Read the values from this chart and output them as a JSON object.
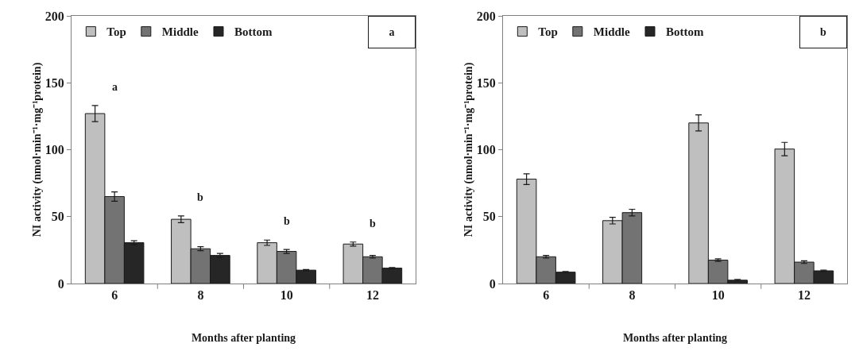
{
  "chart_data": [
    {
      "type": "bar",
      "categories": [
        "6",
        "8",
        "10",
        "12"
      ],
      "xlabel": "Months after planting",
      "ylabel": "NI activity (nmol·min⁻¹·mg⁻¹protein)",
      "ylim": [
        0,
        200
      ],
      "yticks": [
        0,
        50,
        100,
        150,
        200
      ],
      "grid": false,
      "legend": "top left",
      "series": [
        {
          "name": "Top",
          "color": "#bfbfbf",
          "values": [
            127,
            48,
            30.5,
            29.5
          ],
          "errors": [
            6,
            2.5,
            2,
            1.5
          ]
        },
        {
          "name": "Middle",
          "color": "#737373",
          "values": [
            65,
            26,
            24,
            20
          ],
          "errors": [
            3.5,
            1.5,
            1.5,
            1
          ]
        },
        {
          "name": "Bottom",
          "color": "#262626",
          "values": [
            30.5,
            21,
            10,
            11.5
          ],
          "errors": [
            1.5,
            1.5,
            0.5,
            0.5
          ]
        }
      ],
      "annotations": [
        "a",
        "a",
        "b",
        "b",
        "b"
      ]
    },
    {
      "type": "bar",
      "categories": [
        "6",
        "8",
        "10",
        "12"
      ],
      "xlabel": "Months after planting",
      "ylabel": "NI activity (nmol·min⁻¹·mg⁻¹protein)",
      "ylim": [
        0,
        200
      ],
      "yticks": [
        0,
        50,
        100,
        150,
        200
      ],
      "grid": false,
      "legend": "top left",
      "series": [
        {
          "name": "Top",
          "color": "#bfbfbf",
          "values": [
            78,
            47,
            120,
            100.5
          ],
          "errors": [
            4,
            2.5,
            6,
            5
          ]
        },
        {
          "name": "Middle",
          "color": "#737373",
          "values": [
            20,
            53,
            17.5,
            16
          ],
          "errors": [
            1,
            2.5,
            1,
            1
          ]
        },
        {
          "name": "Bottom",
          "color": "#262626",
          "values": [
            8.5,
            null,
            2.5,
            9.5
          ],
          "errors": [
            0.5,
            null,
            0.5,
            0.5
          ]
        }
      ],
      "annotations": [
        "b"
      ]
    }
  ]
}
